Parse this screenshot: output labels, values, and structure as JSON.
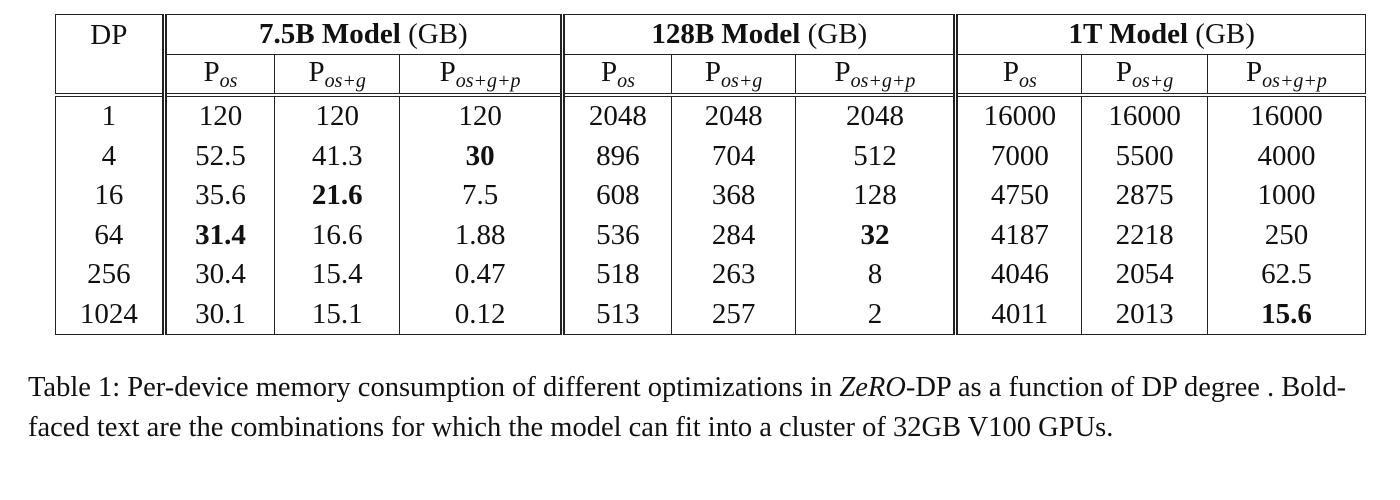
{
  "table": {
    "row_header": "DP",
    "groups": [
      {
        "name": "7.5B Model",
        "unit": "(GB)"
      },
      {
        "name": "128B Model",
        "unit": "(GB)"
      },
      {
        "name": "1T Model",
        "unit": "(GB)"
      }
    ],
    "subheaders": [
      {
        "base": "P",
        "sub": "os"
      },
      {
        "base": "P",
        "sub": "os+g"
      },
      {
        "base": "P",
        "sub": "os+g+p"
      },
      {
        "base": "P",
        "sub": "os"
      },
      {
        "base": "P",
        "sub": "os+g"
      },
      {
        "base": "P",
        "sub": "os+g+p"
      },
      {
        "base": "P",
        "sub": "os"
      },
      {
        "base": "P",
        "sub": "os+g"
      },
      {
        "base": "P",
        "sub": "os+g+p"
      }
    ],
    "rows": [
      [
        {
          "text": "1"
        },
        {
          "text": "120"
        },
        {
          "text": "120"
        },
        {
          "text": "120"
        },
        {
          "text": "2048"
        },
        {
          "text": "2048"
        },
        {
          "text": "2048"
        },
        {
          "text": "16000"
        },
        {
          "text": "16000"
        },
        {
          "text": "16000"
        }
      ],
      [
        {
          "text": "4"
        },
        {
          "text": "52.5"
        },
        {
          "text": "41.3"
        },
        {
          "text": "30",
          "bold": true
        },
        {
          "text": "896"
        },
        {
          "text": "704"
        },
        {
          "text": "512"
        },
        {
          "text": "7000"
        },
        {
          "text": "5500"
        },
        {
          "text": "4000"
        }
      ],
      [
        {
          "text": "16"
        },
        {
          "text": "35.6"
        },
        {
          "text": "21.6",
          "bold": true
        },
        {
          "text": "7.5"
        },
        {
          "text": "608"
        },
        {
          "text": "368"
        },
        {
          "text": "128"
        },
        {
          "text": "4750"
        },
        {
          "text": "2875"
        },
        {
          "text": "1000"
        }
      ],
      [
        {
          "text": "64"
        },
        {
          "text": "31.4",
          "bold": true
        },
        {
          "text": "16.6"
        },
        {
          "text": "1.88"
        },
        {
          "text": "536"
        },
        {
          "text": "284"
        },
        {
          "text": "32",
          "bold": true
        },
        {
          "text": "4187"
        },
        {
          "text": "2218"
        },
        {
          "text": "250"
        }
      ],
      [
        {
          "text": "256"
        },
        {
          "text": "30.4"
        },
        {
          "text": "15.4"
        },
        {
          "text": "0.47"
        },
        {
          "text": "518"
        },
        {
          "text": "263"
        },
        {
          "text": "8"
        },
        {
          "text": "4046"
        },
        {
          "text": "2054"
        },
        {
          "text": "62.5"
        }
      ],
      [
        {
          "text": "1024"
        },
        {
          "text": "30.1"
        },
        {
          "text": "15.1"
        },
        {
          "text": "0.12"
        },
        {
          "text": "513"
        },
        {
          "text": "257"
        },
        {
          "text": "2"
        },
        {
          "text": "4011"
        },
        {
          "text": "2013"
        },
        {
          "text": "15.6",
          "bold": true
        }
      ]
    ]
  },
  "caption": {
    "before": "Table 1: Per-device memory consumption of different optimizations in ",
    "italic": "ZeRO",
    "after": "-DP as a function of DP degree . Bold-faced text are the combinations for which the model can fit into a cluster of 32GB V100 GPUs."
  }
}
